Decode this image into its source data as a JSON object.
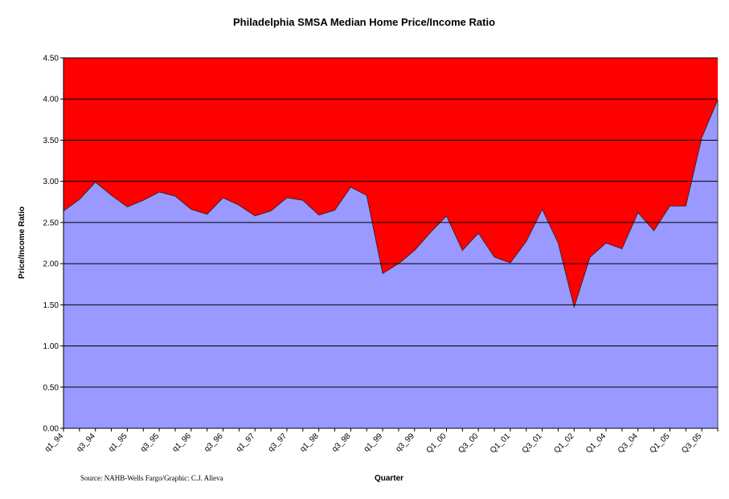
{
  "chart_data": {
    "type": "area",
    "title": "Philadelphia SMSA Median Home Price/Income Ratio",
    "x_label": "Quarter",
    "y_label": "Price/Income Ratio",
    "annotation": "Source: NAHB-Wells Fargo/Graphic: C.J. Alleva",
    "categories": [
      "q1_94",
      null,
      "q3_94",
      null,
      "q1_95",
      null,
      "q3_95",
      null,
      "q1_96",
      null,
      "q3_96",
      null,
      "q1_97",
      null,
      "q3_97",
      null,
      "q1_98",
      null,
      "q3_98",
      null,
      "q1_99",
      null,
      "q3_99",
      null,
      "Q1_00",
      null,
      "Q3_00",
      null,
      "Q1_01",
      null,
      "Q3_01",
      null,
      "Q1_02",
      null,
      "Q1_04",
      null,
      "Q3_04",
      null,
      "Q1_05",
      null,
      "Q3_05",
      null
    ],
    "series": [
      {
        "name": "Price/Income Ratio",
        "color": "#9999ff",
        "values": [
          2.64,
          2.78,
          2.99,
          2.83,
          2.69,
          2.77,
          2.87,
          2.82,
          2.66,
          2.6,
          2.8,
          2.71,
          2.58,
          2.64,
          2.8,
          2.77,
          2.59,
          2.65,
          2.93,
          2.83,
          1.88,
          2.0,
          2.16,
          2.38,
          2.58,
          2.16,
          2.37,
          2.08,
          2.01,
          2.27,
          2.66,
          2.25,
          1.47,
          2.08,
          2.25,
          2.18,
          2.62,
          2.4,
          2.7,
          2.7,
          3.53,
          3.99
        ]
      }
    ],
    "plot_background": "#ff0000",
    "ylim": [
      0,
      4.5
    ],
    "yticks": [
      {
        "value": 0,
        "label": "0.00"
      },
      {
        "value": 0.5,
        "label": "0.50"
      },
      {
        "value": 1,
        "label": "1.00"
      },
      {
        "value": 1.5,
        "label": "1.50"
      },
      {
        "value": 2,
        "label": "2.00"
      },
      {
        "value": 2.5,
        "label": "2.50"
      },
      {
        "value": 3,
        "label": "3.00"
      },
      {
        "value": 3.5,
        "label": "3.50"
      },
      {
        "value": 4,
        "label": "4.00"
      },
      {
        "value": 4.5,
        "label": "4.50"
      }
    ],
    "grid": true
  }
}
